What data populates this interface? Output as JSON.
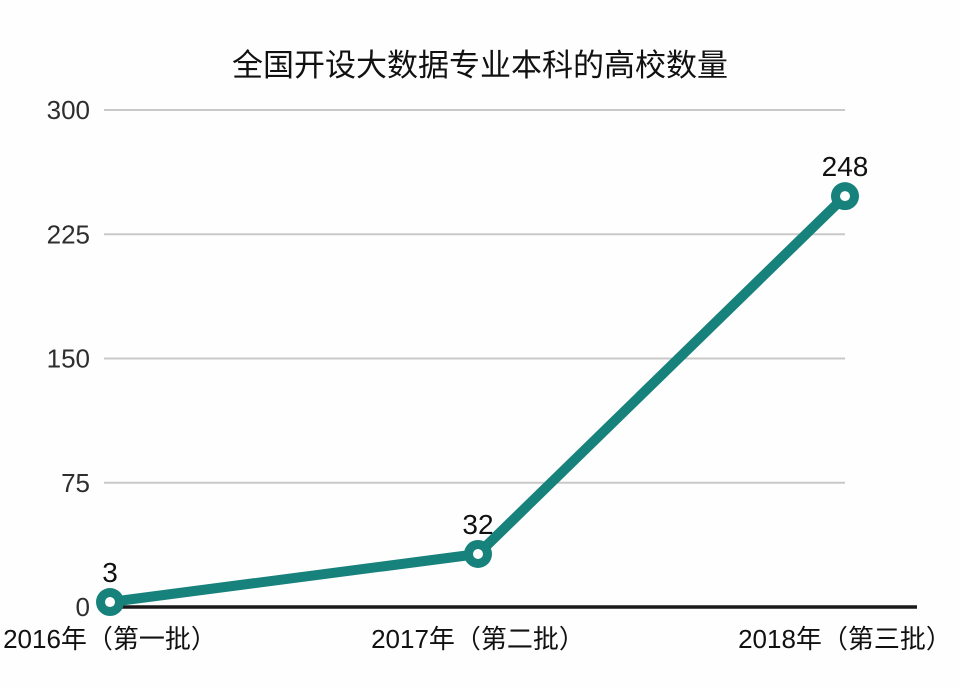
{
  "chart": {
    "colors": {
      "line": "#17827b",
      "marker_hole": "#ffffff",
      "grid": "#c9c9c9",
      "axis": "#1a1a1a",
      "tick_label": "#2e2e2e",
      "text": "#111111",
      "background": "#fefefe"
    }
  },
  "chart_data": {
    "type": "line",
    "title": "全国开设大数据专业本科的高校数量",
    "categories": [
      "2016年（第一批）",
      "2017年（第二批）",
      "2018年（第三批）"
    ],
    "series": [
      {
        "name": "高校数量",
        "values": [
          3,
          32,
          248
        ]
      }
    ],
    "point_labels": [
      "3",
      "32",
      "248"
    ],
    "xlabel": "",
    "ylabel": "",
    "ylim": [
      0,
      300
    ],
    "yticks": [
      300,
      225,
      150,
      75,
      0
    ],
    "grid": "horizontal-only",
    "legend": "none"
  }
}
